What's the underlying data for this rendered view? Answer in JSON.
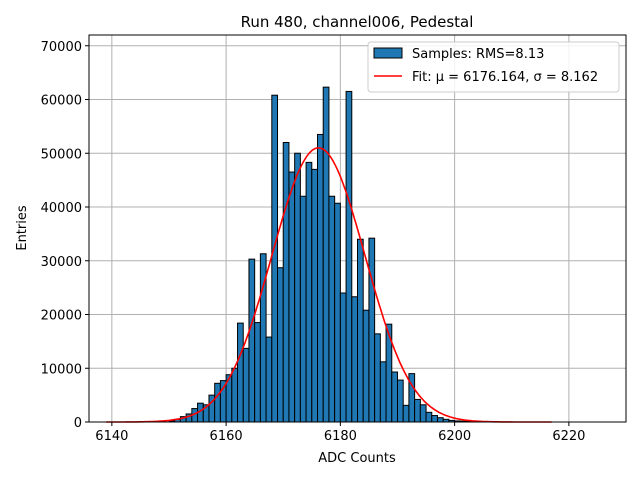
{
  "chart_data": {
    "type": "bar",
    "title": "Run 480, channel006, Pedestal",
    "xlabel": "ADC Counts",
    "ylabel": "Entries",
    "xlim": [
      6136,
      6230
    ],
    "ylim": [
      0,
      72000
    ],
    "grid": true,
    "legend_position": "top-right",
    "xticks": [
      6140,
      6160,
      6180,
      6200,
      6220
    ],
    "yticks": [
      0,
      10000,
      20000,
      30000,
      40000,
      50000,
      60000,
      70000
    ],
    "bin_width": 1,
    "histogram": {
      "name": "Samples: RMS=8.13",
      "color": "#1f77b4",
      "bin_starts": [
        6150,
        6151,
        6152,
        6153,
        6154,
        6155,
        6156,
        6157,
        6158,
        6159,
        6160,
        6161,
        6162,
        6163,
        6164,
        6165,
        6166,
        6167,
        6168,
        6169,
        6170,
        6171,
        6172,
        6173,
        6174,
        6175,
        6176,
        6177,
        6178,
        6179,
        6180,
        6181,
        6182,
        6183,
        6184,
        6185,
        6186,
        6187,
        6188,
        6189,
        6190,
        6191,
        6192,
        6193,
        6194,
        6195,
        6196,
        6197,
        6198,
        6199,
        6200,
        6201,
        6202,
        6203
      ],
      "values": [
        200,
        500,
        1000,
        1500,
        2500,
        3500,
        3200,
        5000,
        7200,
        7700,
        8800,
        10000,
        18400,
        13700,
        30300,
        18500,
        31300,
        15800,
        60800,
        28700,
        52000,
        46500,
        50000,
        42000,
        48300,
        47000,
        53500,
        62300,
        42000,
        40700,
        24000,
        61500,
        23300,
        34000,
        20800,
        34200,
        16400,
        11200,
        18200,
        9300,
        7800,
        3100,
        9000,
        4200,
        3200,
        1800,
        1200,
        800,
        500,
        300,
        200,
        150,
        100,
        50
      ]
    },
    "fit": {
      "name": "Fit: μ = 6176.164, σ = 8.162",
      "color": "#ff0000",
      "mu": 6176.164,
      "sigma": 8.162,
      "amplitude": 51000,
      "range": [
        6139,
        6217
      ]
    }
  }
}
